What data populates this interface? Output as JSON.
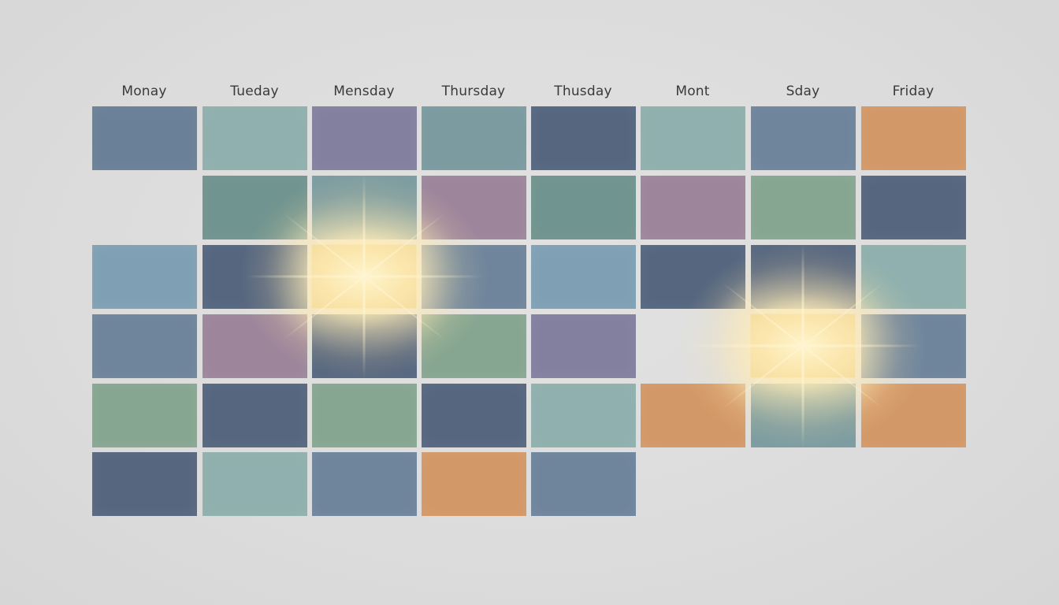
{
  "days": [
    "Monay",
    "Tueday",
    "Mensday",
    "Thursday",
    "Thusday",
    "Mont",
    "Sday",
    "Friday"
  ],
  "colors": {
    "slate": "#6a8098",
    "blue_dark": "#56667f",
    "sky": "#7fa0b4",
    "steel": "#6f859c",
    "teal": "#7b9ba0",
    "teal_dark": "#70948f",
    "seafoam": "#8fb0ae",
    "green": "#87a691",
    "purple": "#83809f",
    "mauve": "#9d869b",
    "orange": "#d39867",
    "highlight": "#fbe7ae"
  },
  "grid": [
    [
      "slate",
      "seafoam",
      "purple",
      "teal",
      "blue_dark",
      "seafoam",
      "steel",
      "orange"
    ],
    [
      null,
      "teal_dark",
      "teal",
      "mauve",
      "teal_dark",
      "mauve",
      "green",
      "blue_dark"
    ],
    [
      "sky",
      "blue_dark",
      "highlight",
      "steel",
      "sky",
      "blue_dark",
      "blue_dark",
      "seafoam"
    ],
    [
      "steel",
      "mauve",
      "blue_dark",
      "green",
      "purple",
      null,
      "highlight",
      "steel"
    ],
    [
      "green",
      "blue_dark",
      "green",
      "blue_dark",
      "seafoam",
      "orange",
      "teal",
      "orange"
    ],
    [
      "blue_dark",
      "seafoam",
      "steel",
      "orange",
      "steel",
      null,
      null,
      null
    ]
  ],
  "highlights": [
    {
      "row": 2,
      "col": 2
    },
    {
      "row": 3,
      "col": 6
    }
  ]
}
